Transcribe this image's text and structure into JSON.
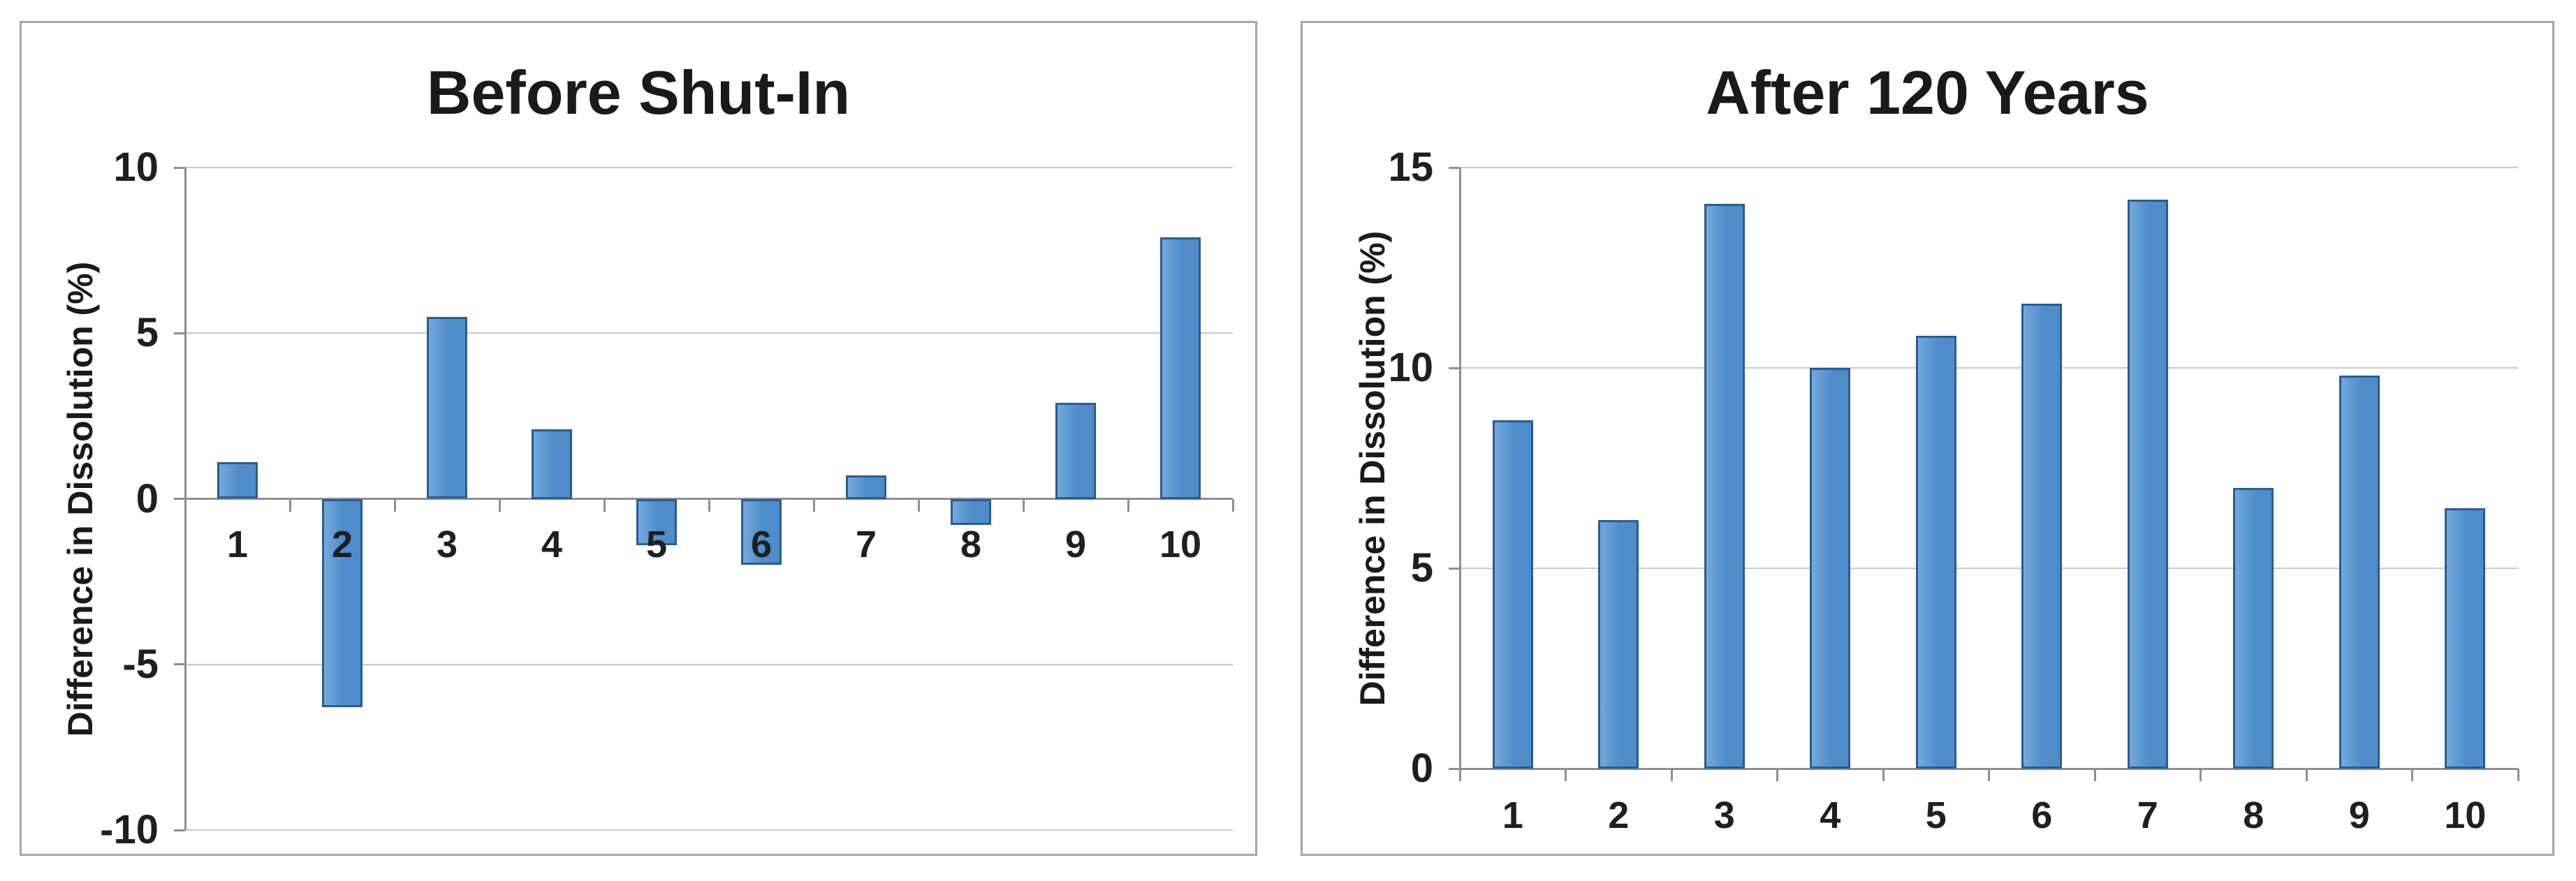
{
  "page": {
    "background": "#ffffff"
  },
  "colors": {
    "bar_fill": "#4e8ccb",
    "bar_fill_light": "#74a9dc",
    "bar_border": "#2b5c92",
    "gridline": "#c9c9c9",
    "axis": "#8f8f8f",
    "panel_border": "#a6a6a6",
    "text": "#1a1a1a",
    "background": "#ffffff"
  },
  "chart_data": [
    {
      "type": "bar",
      "title": "Before Shut-In",
      "xlabel": "",
      "ylabel": "Difference in Dissolution (%)",
      "categories": [
        "1",
        "2",
        "3",
        "4",
        "5",
        "6",
        "7",
        "8",
        "9",
        "10"
      ],
      "values": [
        1.1,
        -6.3,
        5.5,
        2.1,
        -1.4,
        -2.0,
        0.7,
        -0.8,
        2.9,
        7.9
      ],
      "ylim": [
        -10,
        10
      ],
      "yticks": [
        10,
        5,
        0,
        -5,
        -10
      ],
      "grid": true,
      "legend": "none"
    },
    {
      "type": "bar",
      "title": "After 120 Years",
      "xlabel": "",
      "ylabel": "Difference in Dissolution (%)",
      "categories": [
        "1",
        "2",
        "3",
        "4",
        "5",
        "6",
        "7",
        "8",
        "9",
        "10"
      ],
      "values": [
        8.7,
        6.2,
        14.1,
        10.0,
        10.8,
        11.6,
        14.2,
        7.0,
        9.8,
        6.5
      ],
      "ylim": [
        0,
        15
      ],
      "yticks": [
        15,
        10,
        5,
        0
      ],
      "grid": true,
      "legend": "none"
    }
  ]
}
